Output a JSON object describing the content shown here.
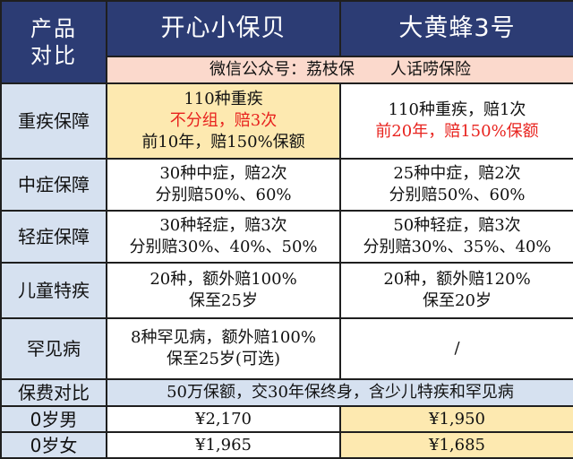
{
  "header": {
    "corner_line1": "产品",
    "corner_line2": "对比",
    "product_a": "开心小保贝",
    "product_b": "大黄蜂3号"
  },
  "subheader": {
    "text_a": "微信公众号：荔枝保",
    "text_b": "人话唠保险"
  },
  "rows": {
    "critical": {
      "label": "重疾保障",
      "a": [
        "110种重疾",
        "不分组，赔3次",
        "前10年，赔150%保额"
      ],
      "b": [
        "110种重疾，赔1次",
        "前20年，赔150%保额"
      ]
    },
    "moderate": {
      "label": "中症保障",
      "a": [
        "30种中症，赔2次",
        "分别赔50%、60%"
      ],
      "b": [
        "25种中症，赔2次",
        "分别赔50%、60%"
      ]
    },
    "mild": {
      "label": "轻症保障",
      "a": [
        "30种轻症，赔3次",
        "分别赔30%、40%、50%"
      ],
      "b": [
        "50种轻症，赔3次",
        "分别赔30%、35%、40%"
      ]
    },
    "child": {
      "label": "儿童特疾",
      "a": [
        "20种，额外赔100%",
        "保至25岁"
      ],
      "b": [
        "20种，额外赔120%",
        "保至20岁"
      ]
    },
    "rare": {
      "label": "罕见病",
      "a": [
        "8种罕见病，额外赔100%",
        "保至25岁(可选)"
      ],
      "b": "/"
    },
    "premium": {
      "label": "保费对比",
      "note": "50万保额，交30年保终身，含少儿特疾和罕见病"
    },
    "male0": {
      "label": "0岁男",
      "a": "¥2,170",
      "b": "¥1,950"
    },
    "female0": {
      "label": "0岁女",
      "a": "¥1,965",
      "b": "¥1,685"
    }
  },
  "colors": {
    "header_bg": "#2c3c74",
    "label_bg": "#d6e1f0",
    "highlight_bg": "#fde9b0",
    "subheader_bg": "#fbd9cc",
    "emphasis_text": "#e8231e"
  }
}
